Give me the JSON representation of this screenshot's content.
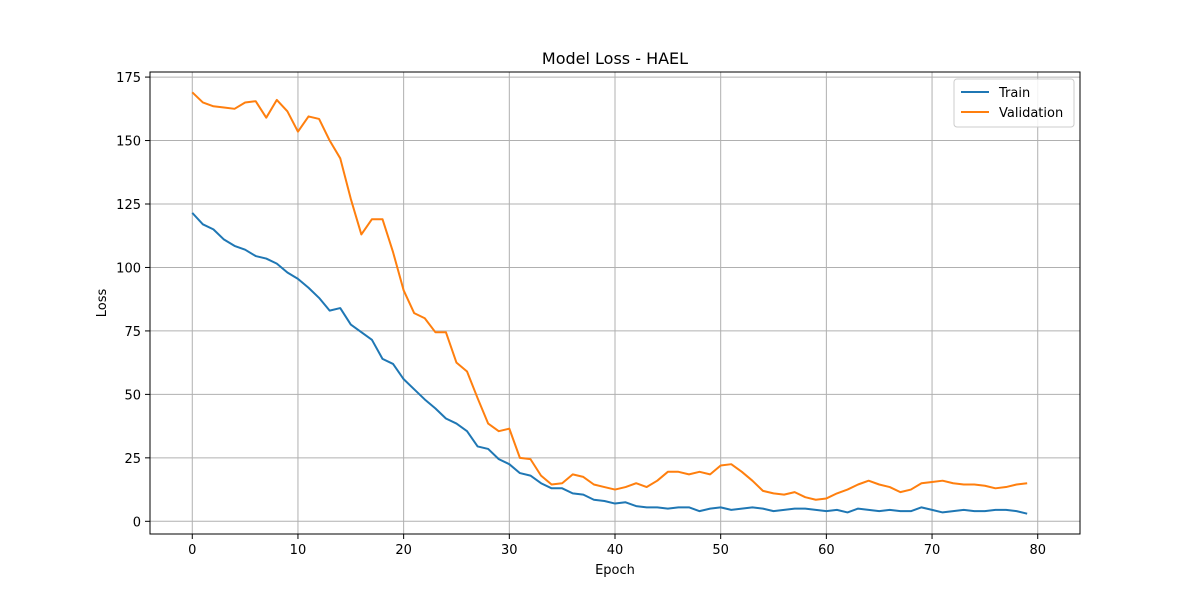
{
  "chart_data": {
    "type": "line",
    "title": "Model Loss - HAEL",
    "xlabel": "Epoch",
    "ylabel": "Loss",
    "xlim": [
      -4,
      84
    ],
    "ylim": [
      -5,
      177
    ],
    "x_ticks": [
      0,
      10,
      20,
      30,
      40,
      50,
      60,
      70,
      80
    ],
    "y_ticks": [
      0,
      25,
      50,
      75,
      100,
      125,
      150,
      175
    ],
    "grid": true,
    "legend_position": "top-right",
    "x": [
      0,
      1,
      2,
      3,
      4,
      5,
      6,
      7,
      8,
      9,
      10,
      11,
      12,
      13,
      14,
      15,
      16,
      17,
      18,
      19,
      20,
      21,
      22,
      23,
      24,
      25,
      26,
      27,
      28,
      29,
      30,
      31,
      32,
      33,
      34,
      35,
      36,
      37,
      38,
      39,
      40,
      41,
      42,
      43,
      44,
      45,
      46,
      47,
      48,
      49,
      50,
      51,
      52,
      53,
      54,
      55,
      56,
      57,
      58,
      59,
      60,
      61,
      62,
      63,
      64,
      65,
      66,
      67,
      68,
      69,
      70,
      71,
      72,
      73,
      74,
      75,
      76,
      77,
      78,
      79
    ],
    "series": [
      {
        "name": "Train",
        "color": "#1f77b4",
        "values": [
          121.5,
          117.0,
          115.0,
          111.0,
          108.5,
          107.0,
          104.5,
          103.5,
          101.5,
          98.0,
          95.5,
          92.0,
          88.0,
          83.0,
          84.0,
          77.5,
          74.5,
          71.5,
          64.0,
          62.0,
          56.0,
          52.0,
          48.0,
          44.5,
          40.5,
          38.5,
          35.5,
          29.5,
          28.5,
          24.5,
          22.5,
          19.0,
          18.0,
          15.0,
          13.0,
          13.0,
          11.0,
          10.5,
          8.5,
          8.0,
          7.0,
          7.5,
          6.0,
          5.5,
          5.5,
          5.0,
          5.5,
          5.5,
          4.0,
          5.0,
          5.5,
          4.5,
          5.0,
          5.5,
          5.0,
          4.0,
          4.5,
          5.0,
          5.0,
          4.5,
          4.0,
          4.5,
          3.5,
          5.0,
          4.5,
          4.0,
          4.5,
          4.0,
          4.0,
          5.5,
          4.5,
          3.5,
          4.0,
          4.5,
          4.0,
          4.0,
          4.5,
          4.5,
          4.0,
          3.0
        ]
      },
      {
        "name": "Validation",
        "color": "#ff7f0e",
        "values": [
          169.0,
          165.0,
          163.5,
          163.0,
          162.5,
          165.0,
          165.5,
          159.0,
          166.0,
          161.5,
          153.5,
          159.5,
          158.5,
          150.0,
          143.0,
          127.0,
          113.0,
          119.0,
          119.0,
          106.0,
          91.0,
          82.0,
          80.0,
          74.5,
          74.5,
          62.5,
          59.0,
          48.5,
          38.5,
          35.5,
          36.5,
          25.0,
          24.5,
          18.0,
          14.5,
          15.0,
          18.5,
          17.5,
          14.5,
          13.5,
          12.5,
          13.5,
          15.0,
          13.5,
          16.0,
          19.5,
          19.5,
          18.5,
          19.5,
          18.5,
          22.0,
          22.5,
          19.5,
          16.0,
          12.0,
          11.0,
          10.5,
          11.5,
          9.5,
          8.5,
          9.0,
          11.0,
          12.5,
          14.5,
          16.0,
          14.5,
          13.5,
          11.5,
          12.5,
          15.0,
          15.5,
          16.0,
          15.0,
          14.5,
          14.5,
          14.0,
          13.0,
          13.5,
          14.5,
          15.0
        ]
      }
    ]
  }
}
